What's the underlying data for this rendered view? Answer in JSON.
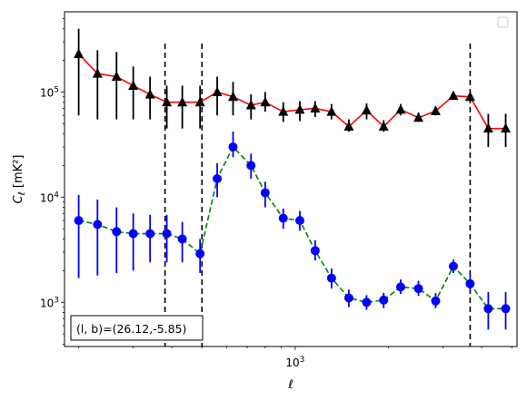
{
  "chart_data": {
    "type": "line",
    "xscale": "log",
    "yscale": "log",
    "xlabel": "ℓ",
    "ylabel": "C_ℓ [mK²]",
    "xlim": [
      180,
      5200
    ],
    "ylim": [
      380,
      580000
    ],
    "x_tick_labels": [
      {
        "value": 1000,
        "label": "10^3"
      }
    ],
    "y_tick_labels": [
      {
        "value": 1000,
        "label": "10^3"
      },
      {
        "value": 10000,
        "label": "10^4"
      },
      {
        "value": 100000,
        "label": "10^5"
      }
    ],
    "vlines": [
      380,
      500,
      3670
    ],
    "annotation": "(l, b)=(26.12,-5.85)",
    "legend": {
      "position": "upper right",
      "entries": []
    },
    "series": [
      {
        "color": "#ff0000",
        "marker": "triangle",
        "marker_color": "#000000",
        "linestyle": "solid",
        "x": [
          200,
          230,
          265,
          300,
          340,
          385,
          432,
          493,
          560,
          630,
          720,
          800,
          915,
          1035,
          1160,
          1310,
          1490,
          1700,
          1930,
          2190,
          2500,
          2840,
          3240,
          3670,
          4200,
          4780
        ],
        "y": [
          230000,
          150000,
          140000,
          115000,
          95000,
          80000,
          80000,
          80000,
          100000,
          90000,
          75000,
          80000,
          65000,
          68000,
          70000,
          65000,
          47000,
          67000,
          47000,
          68000,
          57000,
          66000,
          92000,
          90000,
          45000,
          45000
        ],
        "yerr_low": [
          60000,
          55000,
          55000,
          55000,
          55000,
          45000,
          45000,
          45000,
          60000,
          60000,
          55000,
          65000,
          52000,
          53000,
          58000,
          55000,
          42000,
          55000,
          42000,
          60000,
          52000,
          60000,
          85000,
          83000,
          30000,
          30000
        ],
        "yerr_high": [
          400000,
          250000,
          240000,
          175000,
          140000,
          115000,
          115000,
          115000,
          140000,
          125000,
          95000,
          100000,
          80000,
          82000,
          82000,
          77000,
          55000,
          78000,
          54000,
          77000,
          64000,
          73000,
          100000,
          98000,
          62000,
          62000
        ]
      },
      {
        "color": "#008000",
        "marker": "circle",
        "marker_color": "#0000ff",
        "linestyle": "dashed",
        "x": [
          200,
          230,
          265,
          300,
          340,
          385,
          432,
          493,
          560,
          630,
          720,
          800,
          915,
          1035,
          1160,
          1310,
          1490,
          1700,
          1930,
          2190,
          2500,
          2840,
          3240,
          3670,
          4200,
          4780
        ],
        "y": [
          6000,
          5500,
          4700,
          4500,
          4500,
          4500,
          4000,
          2900,
          15000,
          30000,
          20000,
          11000,
          6300,
          6000,
          3100,
          1700,
          1100,
          1000,
          1050,
          1400,
          1350,
          1030,
          2200,
          1500,
          870,
          870
        ],
        "yerr_low": [
          1700,
          1800,
          1900,
          2000,
          2400,
          2400,
          2400,
          1900,
          10000,
          24000,
          15000,
          8000,
          5000,
          4800,
          2500,
          1350,
          900,
          850,
          880,
          1200,
          1150,
          880,
          1900,
          1250,
          550,
          550
        ],
        "yerr_high": [
          10500,
          9500,
          8000,
          7000,
          6800,
          6800,
          5800,
          4000,
          21000,
          42000,
          26000,
          14000,
          7800,
          7400,
          3900,
          2100,
          1320,
          1170,
          1230,
          1650,
          1600,
          1220,
          2550,
          1850,
          1250,
          1250
        ]
      }
    ]
  }
}
